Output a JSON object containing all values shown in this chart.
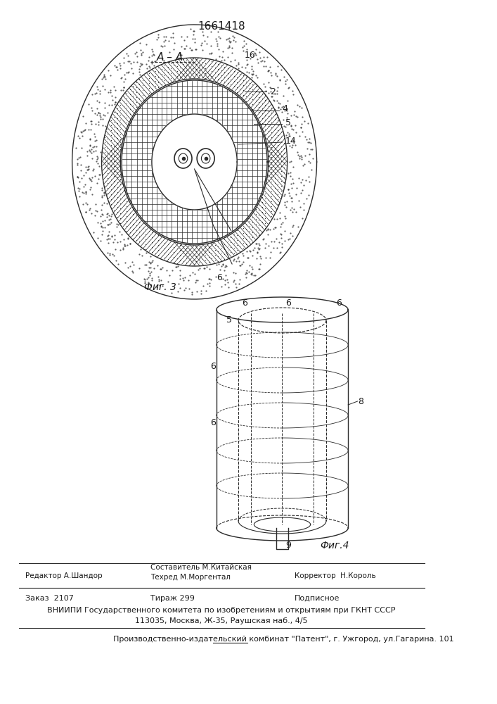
{
  "patent_number": "1661418",
  "fig3_label": "Фиг. 3",
  "fig4_label": "Фиг.4",
  "section_label": "А – А",
  "footer_line1_col1": "Редактор А.Шандор",
  "footer_line1_col2": "Составитель М.Китайская\nТехред М.Моргентал",
  "footer_line1_col3": "Корректор  Н.Король",
  "footer_line2_col1": "Заказ  2107",
  "footer_line2_col2": "Тираж 299",
  "footer_line2_col3": "Подписное",
  "footer_line3": "ВНИИПИ Государственного комитета по изобретениям и открытиям при ГКНТ СССР",
  "footer_line4": "113035, Москва, Ж-35, Раушская наб., 4/5",
  "footer_line5": "Производственно-издательский комбинат \"Патент\", г. Ужгород, ул.Гагарина. 101",
  "bg_color": "#ffffff",
  "line_color": "#2a2a2a",
  "text_color": "#1a1a1a"
}
